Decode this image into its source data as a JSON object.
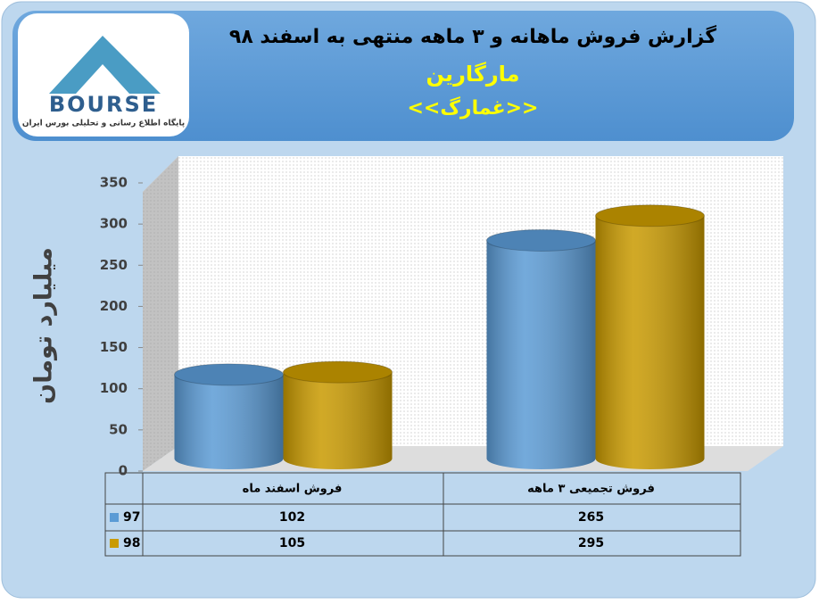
{
  "logo": {
    "name": "BOURSE",
    "tagline": "پایگاه اطلاع رسانی و تحلیلی بورس ایران"
  },
  "chart_data": {
    "type": "bar",
    "title": "گزارش فروش ماهانه و ۳ ماهه منتهی به اسفند ۹۸",
    "subtitle": "مارگارین",
    "symbol": "<<غمارگ>>",
    "y_label": "میلیارد تومان",
    "categories": [
      "فروش اسفند  ماه",
      "فروش تجمیعی ۳ ماهه"
    ],
    "series": [
      {
        "name": "97",
        "color": "#5b9bd5",
        "values": [
          102,
          265
        ]
      },
      {
        "name": "98",
        "color": "#c99a00",
        "values": [
          105,
          295
        ]
      }
    ],
    "ylim": [
      0,
      350
    ],
    "yticks": [
      0,
      50,
      100,
      150,
      200,
      250,
      300,
      350
    ],
    "grid": false
  }
}
